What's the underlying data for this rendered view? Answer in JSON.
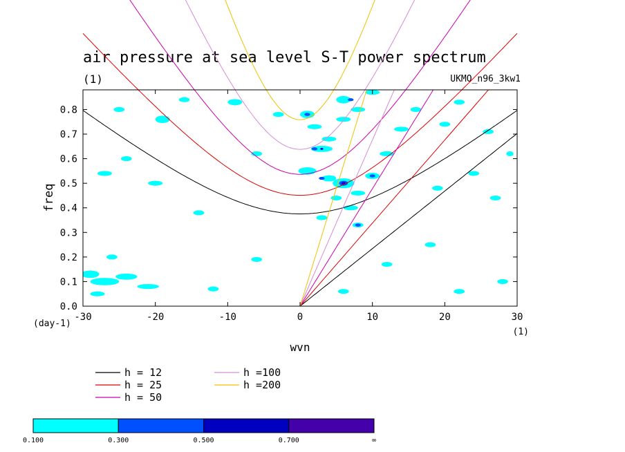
{
  "chart_data": {
    "type": "contour",
    "title": "air pressure at sea level S-T power spectrum",
    "subtitle_left": "(1)",
    "subtitle_right": "UKMO_n96_3kw1",
    "xlabel": "wvn",
    "ylabel": "freq",
    "x_unit_label": "(1)",
    "y_unit_label": "(day-1)",
    "xlim": [
      -30,
      30
    ],
    "ylim": [
      0,
      0.88
    ],
    "x_ticks": [
      -30,
      -20,
      -10,
      0,
      10,
      20,
      30
    ],
    "x_tick_labels": [
      "-30",
      "-20",
      "-10",
      "0",
      "10",
      "20",
      "30"
    ],
    "y_ticks": [
      0,
      0.1,
      0.2,
      0.3,
      0.4,
      0.5,
      0.6,
      0.7,
      0.8
    ],
    "y_tick_labels": [
      "0.0",
      "0.1",
      "0.2",
      "0.3",
      "0.4",
      "0.5",
      "0.6",
      "0.7",
      "0.8"
    ],
    "dispersion_curves": [
      {
        "name": "h = 12",
        "h": 12,
        "color": "#000000"
      },
      {
        "name": "h = 25",
        "h": 25,
        "color": "#dd0000"
      },
      {
        "name": "h = 50",
        "h": 50,
        "color": "#cc00aa"
      },
      {
        "name": "h =100",
        "h": 100,
        "color": "#d68ad6"
      },
      {
        "name": "h =200",
        "h": 200,
        "color": "#f0c000"
      }
    ],
    "colorbar": {
      "levels": [
        "0.100",
        "0.300",
        "0.500",
        "0.700",
        "∞"
      ],
      "colors": [
        "#00ffff",
        "#0050ff",
        "#0000c0",
        "#4400aa"
      ]
    },
    "contour_patches": [
      {
        "x": -29,
        "y": 0.13,
        "w": 2.5,
        "h": 0.03,
        "level": 0
      },
      {
        "x": -27,
        "y": 0.1,
        "w": 4,
        "h": 0.03,
        "level": 0
      },
      {
        "x": -24,
        "y": 0.12,
        "w": 3,
        "h": 0.025,
        "level": 0
      },
      {
        "x": -21,
        "y": 0.08,
        "w": 3,
        "h": 0.02,
        "level": 0
      },
      {
        "x": -28,
        "y": 0.05,
        "w": 2,
        "h": 0.02,
        "level": 0
      },
      {
        "x": -26,
        "y": 0.2,
        "w": 1.5,
        "h": 0.02,
        "level": 0
      },
      {
        "x": -25,
        "y": 0.8,
        "w": 1.5,
        "h": 0.02,
        "level": 0
      },
      {
        "x": -19,
        "y": 0.76,
        "w": 2,
        "h": 0.03,
        "level": 0
      },
      {
        "x": -16,
        "y": 0.84,
        "w": 1.5,
        "h": 0.02,
        "level": 0
      },
      {
        "x": -9,
        "y": 0.83,
        "w": 2,
        "h": 0.025,
        "level": 0
      },
      {
        "x": -27,
        "y": 0.54,
        "w": 2,
        "h": 0.02,
        "level": 0
      },
      {
        "x": -20,
        "y": 0.5,
        "w": 2,
        "h": 0.02,
        "level": 0
      },
      {
        "x": -24,
        "y": 0.6,
        "w": 1.5,
        "h": 0.02,
        "level": 0
      },
      {
        "x": -14,
        "y": 0.38,
        "w": 1.5,
        "h": 0.02,
        "level": 0
      },
      {
        "x": -6,
        "y": 0.62,
        "w": 1.5,
        "h": 0.02,
        "level": 0
      },
      {
        "x": -3,
        "y": 0.78,
        "w": 1.5,
        "h": 0.02,
        "level": 0
      },
      {
        "x": 1,
        "y": 0.78,
        "w": 2,
        "h": 0.03,
        "level": 0
      },
      {
        "x": 2,
        "y": 0.73,
        "w": 2,
        "h": 0.02,
        "level": 0
      },
      {
        "x": 4,
        "y": 0.68,
        "w": 2,
        "h": 0.02,
        "level": 0
      },
      {
        "x": 3,
        "y": 0.64,
        "w": 3,
        "h": 0.025,
        "level": 0
      },
      {
        "x": 6,
        "y": 0.84,
        "w": 2,
        "h": 0.03,
        "level": 0
      },
      {
        "x": 10,
        "y": 0.87,
        "w": 2,
        "h": 0.02,
        "level": 0
      },
      {
        "x": 8,
        "y": 0.8,
        "w": 2,
        "h": 0.02,
        "level": 0
      },
      {
        "x": 6,
        "y": 0.76,
        "w": 2,
        "h": 0.02,
        "level": 0
      },
      {
        "x": 1,
        "y": 0.55,
        "w": 2.5,
        "h": 0.03,
        "level": 0
      },
      {
        "x": 4,
        "y": 0.52,
        "w": 2,
        "h": 0.025,
        "level": 0
      },
      {
        "x": 6,
        "y": 0.5,
        "w": 3,
        "h": 0.04,
        "level": 0
      },
      {
        "x": 8,
        "y": 0.46,
        "w": 2,
        "h": 0.02,
        "level": 0
      },
      {
        "x": 10,
        "y": 0.53,
        "w": 2,
        "h": 0.025,
        "level": 0
      },
      {
        "x": 5,
        "y": 0.44,
        "w": 1.5,
        "h": 0.02,
        "level": 0
      },
      {
        "x": 7,
        "y": 0.4,
        "w": 2,
        "h": 0.02,
        "level": 0
      },
      {
        "x": 8,
        "y": 0.33,
        "w": 1.5,
        "h": 0.02,
        "level": 0
      },
      {
        "x": 3,
        "y": 0.36,
        "w": 1.5,
        "h": 0.02,
        "level": 0
      },
      {
        "x": 12,
        "y": 0.62,
        "w": 2,
        "h": 0.02,
        "level": 0
      },
      {
        "x": 14,
        "y": 0.72,
        "w": 2,
        "h": 0.02,
        "level": 0
      },
      {
        "x": 16,
        "y": 0.8,
        "w": 1.5,
        "h": 0.02,
        "level": 0
      },
      {
        "x": 20,
        "y": 0.74,
        "w": 1.5,
        "h": 0.02,
        "level": 0
      },
      {
        "x": 22,
        "y": 0.83,
        "w": 1.5,
        "h": 0.02,
        "level": 0
      },
      {
        "x": 26,
        "y": 0.71,
        "w": 1.5,
        "h": 0.02,
        "level": 0
      },
      {
        "x": 19,
        "y": 0.48,
        "w": 1.5,
        "h": 0.02,
        "level": 0
      },
      {
        "x": 24,
        "y": 0.54,
        "w": 1.5,
        "h": 0.02,
        "level": 0
      },
      {
        "x": 27,
        "y": 0.44,
        "w": 1.5,
        "h": 0.02,
        "level": 0
      },
      {
        "x": 29,
        "y": 0.62,
        "w": 1,
        "h": 0.02,
        "level": 0
      },
      {
        "x": 12,
        "y": 0.17,
        "w": 1.5,
        "h": 0.02,
        "level": 0
      },
      {
        "x": 18,
        "y": 0.25,
        "w": 1.5,
        "h": 0.02,
        "level": 0
      },
      {
        "x": 28,
        "y": 0.1,
        "w": 1.5,
        "h": 0.02,
        "level": 0
      },
      {
        "x": 22,
        "y": 0.06,
        "w": 1.5,
        "h": 0.02,
        "level": 0
      },
      {
        "x": 6,
        "y": 0.06,
        "w": 1.5,
        "h": 0.02,
        "level": 0
      },
      {
        "x": -12,
        "y": 0.07,
        "w": 1.5,
        "h": 0.02,
        "level": 0
      },
      {
        "x": -6,
        "y": 0.19,
        "w": 1.5,
        "h": 0.02,
        "level": 0
      },
      {
        "x": 1,
        "y": 0.78,
        "w": 0.8,
        "h": 0.012,
        "level": 1
      },
      {
        "x": 2,
        "y": 0.64,
        "w": 0.8,
        "h": 0.012,
        "level": 1
      },
      {
        "x": 3,
        "y": 0.52,
        "w": 0.8,
        "h": 0.012,
        "level": 1
      },
      {
        "x": 6,
        "y": 0.5,
        "w": 1.2,
        "h": 0.02,
        "level": 1
      },
      {
        "x": 8,
        "y": 0.33,
        "w": 0.8,
        "h": 0.012,
        "level": 1
      },
      {
        "x": 10,
        "y": 0.53,
        "w": 0.8,
        "h": 0.012,
        "level": 1
      },
      {
        "x": 7,
        "y": 0.84,
        "w": 0.8,
        "h": 0.012,
        "level": 1
      },
      {
        "x": 6,
        "y": 0.5,
        "w": 0.5,
        "h": 0.01,
        "level": 2
      },
      {
        "x": 3,
        "y": 0.64,
        "w": 0.4,
        "h": 0.008,
        "level": 2
      },
      {
        "x": 6,
        "y": 0.5,
        "w": 0.25,
        "h": 0.005,
        "level": 3
      }
    ]
  }
}
